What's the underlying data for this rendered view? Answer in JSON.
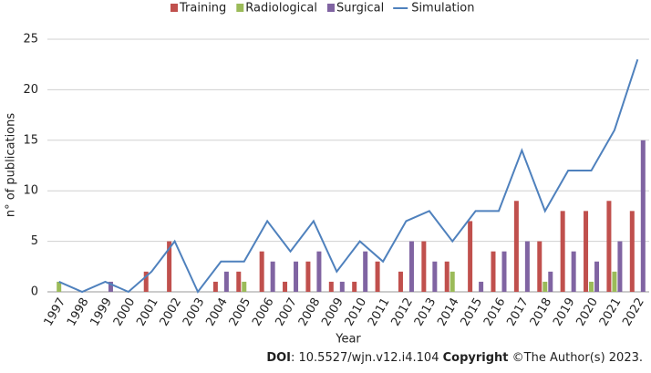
{
  "chart_data": {
    "type": "bar",
    "x_label": "Year",
    "y_label": "n° of publications",
    "categories": [
      "1997",
      "1998",
      "1999",
      "2000",
      "2001",
      "2002",
      "2003",
      "2004",
      "2005",
      "2006",
      "2007",
      "2008",
      "2009",
      "2010",
      "2011",
      "2012",
      "2013",
      "2014",
      "2015",
      "2016",
      "2017",
      "2018",
      "2019",
      "2020",
      "2021",
      "2022"
    ],
    "series": [
      {
        "name": "Training",
        "color": "#c0504d",
        "type": "bar",
        "values": [
          0,
          0,
          0,
          0,
          2,
          5,
          0,
          1,
          2,
          4,
          1,
          3,
          1,
          1,
          3,
          2,
          5,
          3,
          7,
          4,
          9,
          5,
          8,
          8,
          9,
          8
        ]
      },
      {
        "name": "Radiological",
        "color": "#9bbb59",
        "type": "bar",
        "values": [
          1,
          0,
          0,
          0,
          0,
          0,
          0,
          0,
          1,
          0,
          0,
          0,
          0,
          0,
          0,
          0,
          0,
          2,
          0,
          0,
          0,
          1,
          0,
          1,
          2,
          0
        ]
      },
      {
        "name": "Surgical",
        "color": "#8064a2",
        "type": "bar",
        "values": [
          0,
          0,
          1,
          0,
          0,
          0,
          0,
          2,
          0,
          3,
          3,
          4,
          1,
          4,
          0,
          5,
          3,
          0,
          1,
          4,
          5,
          2,
          4,
          3,
          5,
          15
        ]
      },
      {
        "name": "Simulation",
        "color": "#4f81bd",
        "type": "line",
        "values": [
          1,
          0,
          1,
          0,
          2,
          5,
          0,
          3,
          3,
          7,
          4,
          7,
          2,
          5,
          3,
          7,
          8,
          5,
          8,
          8,
          14,
          8,
          12,
          12,
          16,
          23
        ]
      }
    ],
    "ylim": [
      0,
      25
    ],
    "yticks": [
      0,
      5,
      10,
      15,
      20,
      25
    ],
    "grid": true,
    "legend": "top"
  },
  "footer": {
    "doi_label": "DOI",
    "doi_text": ": 10.5527/wjn.v12.i4.104 ",
    "copyright_label": "Copyright",
    "copyright_text": " ©The Author(s) 2023."
  }
}
